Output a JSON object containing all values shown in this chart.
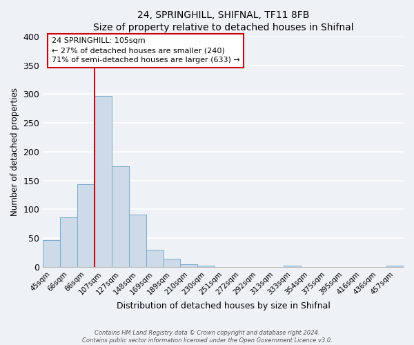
{
  "title": "24, SPRINGHILL, SHIFNAL, TF11 8FB",
  "subtitle": "Size of property relative to detached houses in Shifnal",
  "xlabel": "Distribution of detached houses by size in Shifnal",
  "ylabel": "Number of detached properties",
  "bar_labels": [
    "45sqm",
    "66sqm",
    "86sqm",
    "107sqm",
    "127sqm",
    "148sqm",
    "169sqm",
    "189sqm",
    "210sqm",
    "230sqm",
    "251sqm",
    "272sqm",
    "292sqm",
    "313sqm",
    "333sqm",
    "354sqm",
    "375sqm",
    "395sqm",
    "416sqm",
    "436sqm",
    "457sqm"
  ],
  "bar_values": [
    47,
    86,
    144,
    297,
    175,
    91,
    30,
    14,
    5,
    2,
    0,
    0,
    0,
    0,
    2,
    0,
    0,
    0,
    0,
    0,
    2
  ],
  "bar_color": "#ccdaea",
  "bar_edge_color": "#7aaac8",
  "ylim": [
    0,
    400
  ],
  "yticks": [
    0,
    50,
    100,
    150,
    200,
    250,
    300,
    350,
    400
  ],
  "vline_index": 3,
  "vline_color": "#cc0000",
  "annotation_title": "24 SPRINGHILL: 105sqm",
  "annotation_line1": "← 27% of detached houses are smaller (240)",
  "annotation_line2": "71% of semi-detached houses are larger (633) →",
  "annotation_box_color": "#ffffff",
  "annotation_box_edge": "#cc0000",
  "footer_line1": "Contains HM Land Registry data © Crown copyright and database right 2024.",
  "footer_line2": "Contains public sector information licensed under the Open Government Licence v3.0.",
  "background_color": "#eef2f7"
}
